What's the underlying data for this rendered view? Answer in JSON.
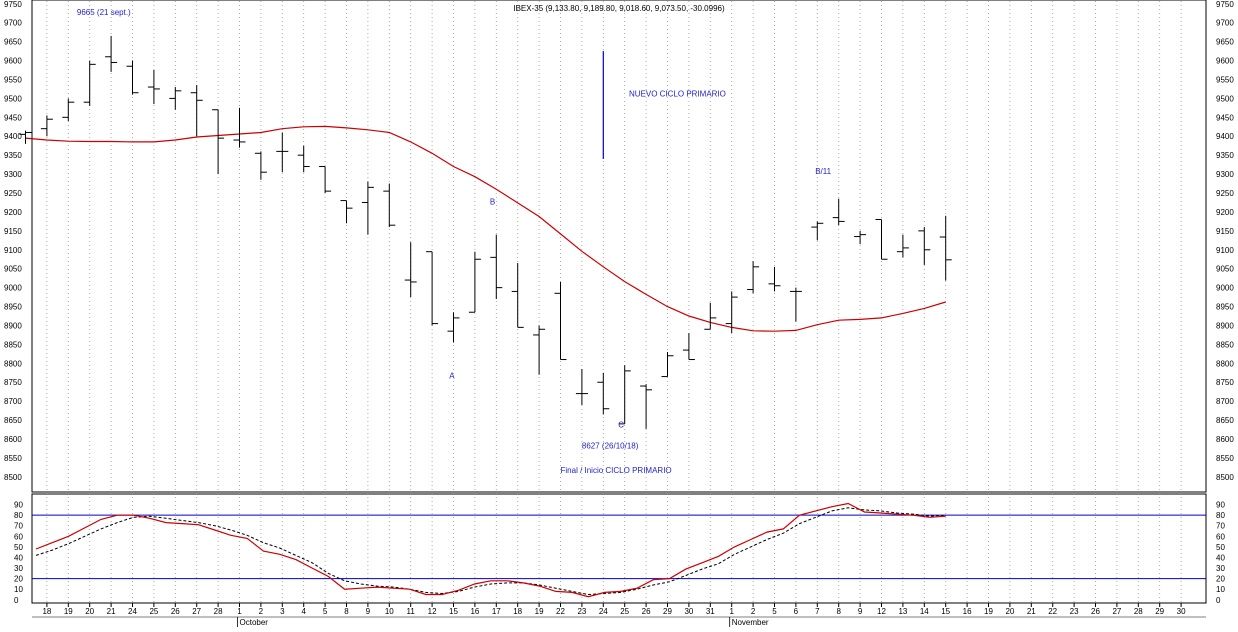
{
  "title": "IBEX-35 (9,133.80, 9,189.80, 9,018.60, 9,073.50, -30.0996)",
  "colors": {
    "price_bar": "#000000",
    "moving_average": "#cc0000",
    "stochastic_k": "#cc0000",
    "stochastic_d": "#000000",
    "reference_lines": "#0000cc",
    "annotation_text": "#2222cc",
    "grid": "#999999"
  },
  "chart_data": [
    {
      "type": "ohlc",
      "name": "price",
      "ylim": [
        8460,
        9760
      ],
      "y_ticks": [
        8500,
        8550,
        8600,
        8650,
        8700,
        8750,
        8800,
        8850,
        8900,
        8950,
        9000,
        9050,
        9100,
        9150,
        9200,
        9250,
        9300,
        9350,
        9400,
        9450,
        9500,
        9550,
        9600,
        9650,
        9700,
        9750
      ],
      "grid": "vertical dotted",
      "bars": [
        {
          "x": "17",
          "open": 9405,
          "high": 9415,
          "low": 9380,
          "close": 9410
        },
        {
          "x": "18",
          "open": 9420,
          "high": 9455,
          "low": 9400,
          "close": 9445
        },
        {
          "x": "19",
          "open": 9450,
          "high": 9500,
          "low": 9440,
          "close": 9490
        },
        {
          "x": "20",
          "open": 9490,
          "high": 9600,
          "low": 9480,
          "close": 9590
        },
        {
          "x": "21",
          "open": 9610,
          "high": 9665,
          "low": 9570,
          "close": 9595
        },
        {
          "x": "24",
          "open": 9585,
          "high": 9600,
          "low": 9510,
          "close": 9515
        },
        {
          "x": "25",
          "open": 9530,
          "high": 9575,
          "low": 9485,
          "close": 9525
        },
        {
          "x": "26",
          "open": 9500,
          "high": 9530,
          "low": 9470,
          "close": 9520
        },
        {
          "x": "27",
          "open": 9515,
          "high": 9535,
          "low": 9400,
          "close": 9495
        },
        {
          "x": "28",
          "open": 9470,
          "high": 9470,
          "low": 9300,
          "close": 9395
        },
        {
          "x": "1",
          "open": 9390,
          "high": 9475,
          "low": 9370,
          "close": 9385
        },
        {
          "x": "2",
          "open": 9355,
          "high": 9360,
          "low": 9285,
          "close": 9305
        },
        {
          "x": "3",
          "open": 9360,
          "high": 9410,
          "low": 9305,
          "close": 9360
        },
        {
          "x": "4",
          "open": 9350,
          "high": 9375,
          "low": 9305,
          "close": 9320
        },
        {
          "x": "5",
          "open": 9320,
          "high": 9320,
          "low": 9250,
          "close": 9255
        },
        {
          "x": "8",
          "open": 9230,
          "high": 9230,
          "low": 9170,
          "close": 9210
        },
        {
          "x": "9",
          "open": 9225,
          "high": 9280,
          "low": 9140,
          "close": 9265
        },
        {
          "x": "10",
          "open": 9255,
          "high": 9275,
          "low": 9160,
          "close": 9165
        },
        {
          "x": "11",
          "open": 9020,
          "high": 9120,
          "low": 8975,
          "close": 9015
        },
        {
          "x": "12",
          "open": 9095,
          "high": 9095,
          "low": 8900,
          "close": 8905
        },
        {
          "x": "15",
          "open": 8885,
          "high": 8935,
          "low": 8855,
          "close": 8920
        },
        {
          "x": "16",
          "open": 8935,
          "high": 9095,
          "low": 8935,
          "close": 9075
        },
        {
          "x": "17",
          "open": 9080,
          "high": 9140,
          "low": 8970,
          "close": 9000
        },
        {
          "x": "18",
          "open": 8990,
          "high": 9065,
          "low": 8895,
          "close": 8895
        },
        {
          "x": "19",
          "open": 8875,
          "high": 8900,
          "low": 8770,
          "close": 8890
        },
        {
          "x": "22",
          "open": 8985,
          "high": 9015,
          "low": 8810,
          "close": 8810
        },
        {
          "x": "23",
          "open": 8720,
          "high": 8785,
          "low": 8690,
          "close": 8720
        },
        {
          "x": "24",
          "open": 8750,
          "high": 8775,
          "low": 8665,
          "close": 8680
        },
        {
          "x": "25",
          "open": 8640,
          "high": 8795,
          "low": 8640,
          "close": 8780
        },
        {
          "x": "26",
          "open": 8740,
          "high": 8745,
          "low": 8627,
          "close": 8730
        },
        {
          "x": "29",
          "open": 8765,
          "high": 8830,
          "low": 8765,
          "close": 8820
        },
        {
          "x": "30",
          "open": 8835,
          "high": 8880,
          "low": 8810,
          "close": 8810
        },
        {
          "x": "31",
          "open": 8890,
          "high": 8960,
          "low": 8890,
          "close": 8920
        },
        {
          "x": "1",
          "open": 8905,
          "high": 8990,
          "low": 8880,
          "close": 8975
        },
        {
          "x": "2",
          "open": 8995,
          "high": 9070,
          "low": 8985,
          "close": 9055
        },
        {
          "x": "5",
          "open": 9010,
          "high": 9055,
          "low": 8990,
          "close": 9005
        },
        {
          "x": "6",
          "open": 8990,
          "high": 9000,
          "low": 8910,
          "close": 8990
        },
        {
          "x": "7",
          "open": 9160,
          "high": 9175,
          "low": 9125,
          "close": 9170
        },
        {
          "x": "8",
          "open": 9185,
          "high": 9235,
          "low": 9165,
          "close": 9175
        },
        {
          "x": "9",
          "open": 9135,
          "high": 9150,
          "low": 9115,
          "close": 9140
        },
        {
          "x": "12",
          "open": 9180,
          "high": 9180,
          "low": 9075,
          "close": 9075
        },
        {
          "x": "13",
          "open": 9095,
          "high": 9140,
          "low": 9080,
          "close": 9105
        },
        {
          "x": "14",
          "open": 9150,
          "high": 9160,
          "low": 9060,
          "close": 9100
        },
        {
          "x": "15",
          "open": 9133.8,
          "high": 9189.8,
          "low": 9018.6,
          "close": 9073.5
        }
      ],
      "moving_average": [
        9395,
        9390,
        9387,
        9386,
        9386,
        9385,
        9385,
        9390,
        9398,
        9402,
        9406,
        9410,
        9420,
        9425,
        9426,
        9422,
        9417,
        9410,
        9385,
        9355,
        9320,
        9293,
        9260,
        9224,
        9188,
        9142,
        9096,
        9055,
        9016,
        8982,
        8950,
        8925,
        8908,
        8895,
        8886,
        8885,
        8887,
        8902,
        8914,
        8916,
        8920,
        8932,
        8945,
        8962
      ],
      "annotations": [
        {
          "text": "9665 (21 sept.)",
          "x": "21",
          "y": 9720
        },
        {
          "text": "NUEVO CICLO PRIMARIO",
          "x": "24",
          "y": 9505
        },
        {
          "text": "B/11",
          "x": "7",
          "y": 9300
        },
        {
          "text": "B",
          "x": "17",
          "y": 9220
        },
        {
          "text": "A",
          "x": "15",
          "y": 8760
        },
        {
          "text": "C",
          "x": "25",
          "y": 8630
        },
        {
          "text": "8627 (26/10/18)",
          "x": "24",
          "y": 8575
        },
        {
          "text": "Final / Inicio CICLO PRIMARIO",
          "x": "24",
          "y": 8510
        }
      ],
      "marker_line": {
        "x": "24",
        "y_from": 9340,
        "y_to": 9625
      }
    },
    {
      "type": "line",
      "name": "stochastic",
      "ylim": [
        -3,
        100
      ],
      "y_ticks": [
        0,
        10,
        20,
        30,
        40,
        50,
        60,
        70,
        80,
        90
      ],
      "reference_lines": [
        20,
        80
      ],
      "k": [
        48,
        54,
        60,
        68,
        76,
        80,
        80,
        77,
        73,
        72,
        71,
        66,
        61,
        58,
        46,
        43,
        38,
        30,
        22,
        10,
        11,
        12,
        11,
        10,
        5,
        5,
        9,
        15,
        18,
        18,
        16,
        13,
        8,
        7,
        3,
        7,
        8,
        11,
        19,
        20,
        29,
        35,
        41,
        50,
        57,
        64,
        67,
        80,
        84,
        88,
        91,
        83,
        82,
        81,
        80,
        78,
        79
      ],
      "d": [
        42,
        47,
        53,
        60,
        67,
        73,
        78,
        79,
        77,
        75,
        73,
        70,
        66,
        61,
        54,
        49,
        42,
        35,
        25,
        18,
        15,
        13,
        12,
        10,
        7,
        6,
        8,
        12,
        15,
        16,
        16,
        14,
        11,
        8,
        5,
        6,
        7,
        10,
        14,
        17,
        23,
        29,
        34,
        43,
        50,
        57,
        63,
        72,
        78,
        84,
        87,
        85,
        84,
        82,
        81,
        79,
        80
      ]
    }
  ],
  "x_axis": {
    "day_labels": [
      "18",
      "19",
      "20",
      "21",
      "24",
      "25",
      "26",
      "27",
      "28",
      "1",
      "2",
      "3",
      "4",
      "5",
      "8",
      "9",
      "10",
      "11",
      "12",
      "15",
      "16",
      "17",
      "18",
      "19",
      "22",
      "23",
      "24",
      "25",
      "26",
      "29",
      "30",
      "31",
      "1",
      "2",
      "5",
      "6",
      "7",
      "8",
      "9",
      "12",
      "13",
      "14",
      "15",
      "16",
      "19",
      "20",
      "21",
      "22",
      "23",
      "26",
      "27",
      "28",
      "29",
      "30"
    ],
    "month_labels": [
      {
        "text": "October",
        "at": "1"
      },
      {
        "text": "November",
        "at": "1"
      }
    ]
  }
}
